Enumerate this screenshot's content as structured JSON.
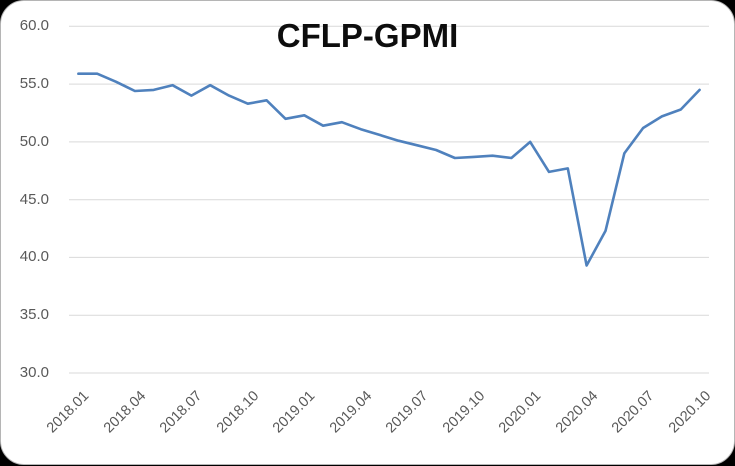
{
  "title": "CFLP-GPMI",
  "chart_data": {
    "type": "line",
    "title": "CFLP-GPMI",
    "x": [
      "2018.01",
      "2018.02",
      "2018.03",
      "2018.04",
      "2018.05",
      "2018.06",
      "2018.07",
      "2018.08",
      "2018.09",
      "2018.10",
      "2018.11",
      "2018.12",
      "2019.01",
      "2019.02",
      "2019.03",
      "2019.04",
      "2019.05",
      "2019.06",
      "2019.07",
      "2019.08",
      "2019.09",
      "2019.10",
      "2019.11",
      "2019.12",
      "2020.01",
      "2020.02",
      "2020.03",
      "2020.04",
      "2020.05",
      "2020.06",
      "2020.07",
      "2020.08",
      "2020.09",
      "2020.10"
    ],
    "values": [
      55.9,
      55.9,
      55.2,
      54.4,
      54.5,
      54.9,
      54.0,
      54.9,
      54.0,
      53.3,
      53.6,
      52.0,
      52.3,
      51.4,
      51.7,
      51.1,
      50.6,
      50.1,
      49.7,
      49.3,
      48.6,
      48.7,
      48.8,
      48.6,
      50.0,
      47.4,
      47.7,
      39.3,
      42.3,
      49.0,
      51.2,
      52.2,
      52.8,
      54.5
    ],
    "ylim": [
      30,
      60
    ],
    "y_tick_labels": [
      "60.0",
      "55.0",
      "50.0",
      "45.0",
      "40.0",
      "35.0",
      "30.0"
    ],
    "x_tick_interval": 3,
    "x_tick_labels": [
      "2018.01",
      "2018.04",
      "2018.07",
      "2018.10",
      "2019.01",
      "2019.04",
      "2019.07",
      "2019.10",
      "2020.01",
      "2020.04",
      "2020.07",
      "2020.10"
    ],
    "xlabel": "",
    "ylabel": "",
    "legend": "none",
    "grid": "horizontal",
    "line_color": "#4F81BD",
    "gridline_color": "#D9D9D9",
    "tick_label_color": "#595959",
    "background_color": "#FFFFFF"
  }
}
